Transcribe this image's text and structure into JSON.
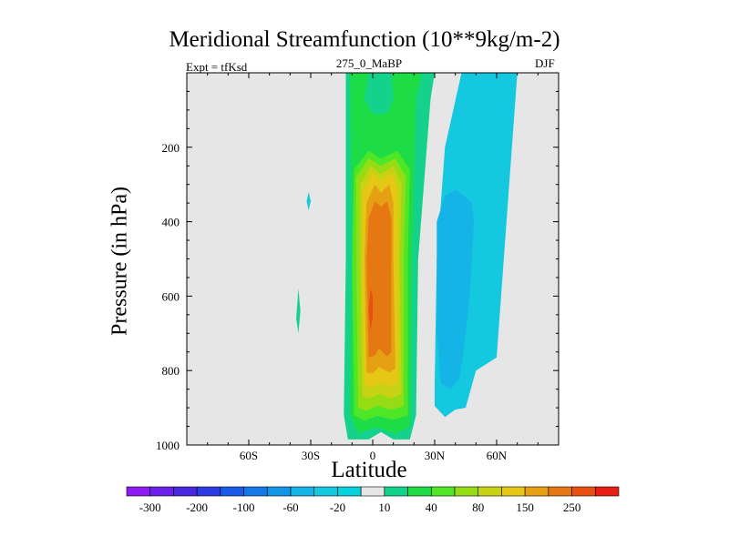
{
  "chart_data": {
    "type": "heatmap",
    "title": "Meridional Streamfunction (10**9kg/m-2)",
    "subtitle_left": "Expt = tfKsd",
    "subtitle_center": "275_0_MaBP",
    "subtitle_right": "DJF",
    "xlabel": "Latitude",
    "ylabel": "Pressure (in hPa)",
    "xlim": [
      -90,
      90
    ],
    "ylim": [
      1000,
      0
    ],
    "x_ticks": [
      {
        "value": -60,
        "label": "60S"
      },
      {
        "value": -30,
        "label": "30S"
      },
      {
        "value": 0,
        "label": "0"
      },
      {
        "value": 30,
        "label": "30N"
      },
      {
        "value": 60,
        "label": "60N"
      }
    ],
    "y_ticks": [
      {
        "value": 200,
        "label": "200"
      },
      {
        "value": 400,
        "label": "400"
      },
      {
        "value": 600,
        "label": "600"
      },
      {
        "value": 800,
        "label": "800"
      },
      {
        "value": 1000,
        "label": "1000"
      }
    ],
    "background_color": "#e6e6e6",
    "colorbar": {
      "levels": [
        -300,
        -250,
        -200,
        -150,
        -100,
        -80,
        -60,
        -40,
        -20,
        -10,
        10,
        20,
        40,
        60,
        80,
        100,
        150,
        200,
        250,
        300
      ],
      "labels": [
        "-300",
        "-200",
        "-100",
        "-60",
        "-20",
        "10",
        "40",
        "80",
        "150",
        "250"
      ],
      "colors": [
        "#8c1cf0",
        "#6a20e6",
        "#4a28e0",
        "#2c3ce0",
        "#1a5ae6",
        "#1478e6",
        "#1496e6",
        "#14b4e6",
        "#14c8e0",
        "#0ad2dc",
        "#e6e6e6",
        "#14d28c",
        "#1edc46",
        "#50e628",
        "#96dc14",
        "#c8d214",
        "#e6c814",
        "#e6a014",
        "#e67814",
        "#e65014",
        "#e61e14"
      ]
    },
    "regions": [
      {
        "level": 10,
        "polygon": [
          [
            -13,
            0
          ],
          [
            -13,
            500
          ],
          [
            -14,
            920
          ],
          [
            -12,
            985
          ],
          [
            -2,
            985
          ],
          [
            4,
            965
          ],
          [
            10,
            985
          ],
          [
            18,
            985
          ],
          [
            21,
            920
          ],
          [
            22,
            500
          ],
          [
            28,
            70
          ],
          [
            30,
            0
          ]
        ]
      },
      {
        "level": 20,
        "polygon": [
          [
            -11,
            0
          ],
          [
            -10,
            500
          ],
          [
            -11,
            920
          ],
          [
            -7,
            968
          ],
          [
            2,
            952
          ],
          [
            11,
            970
          ],
          [
            18,
            950
          ],
          [
            19,
            500
          ],
          [
            21,
            70
          ],
          [
            24,
            0
          ],
          [
            9,
            0
          ],
          [
            10,
            70
          ],
          [
            7,
            110
          ],
          [
            0,
            110
          ],
          [
            -4,
            70
          ],
          [
            -2,
            0
          ]
        ]
      },
      {
        "level": 40,
        "polygon": [
          [
            -9,
            260
          ],
          [
            -10,
            500
          ],
          [
            -9,
            920
          ],
          [
            -4,
            935
          ],
          [
            2,
            922
          ],
          [
            10,
            932
          ],
          [
            17,
            920
          ],
          [
            17,
            500
          ],
          [
            18,
            260
          ],
          [
            12,
            210
          ],
          [
            4,
            230
          ],
          [
            -2,
            210
          ]
        ]
      },
      {
        "level": 60,
        "polygon": [
          [
            -8,
            280
          ],
          [
            -8,
            500
          ],
          [
            -7,
            900
          ],
          [
            -3,
            908
          ],
          [
            2,
            895
          ],
          [
            9,
            905
          ],
          [
            15,
            895
          ],
          [
            15,
            500
          ],
          [
            16,
            280
          ],
          [
            11,
            230
          ],
          [
            4,
            250
          ],
          [
            -2,
            230
          ]
        ]
      },
      {
        "level": 80,
        "polygon": [
          [
            -6,
            300
          ],
          [
            -6,
            500
          ],
          [
            -5,
            870
          ],
          [
            -1,
            875
          ],
          [
            3,
            862
          ],
          [
            9,
            875
          ],
          [
            14,
            862
          ],
          [
            13,
            500
          ],
          [
            14,
            300
          ],
          [
            10,
            250
          ],
          [
            4,
            272
          ],
          [
            -1,
            250
          ]
        ]
      },
      {
        "level": 100,
        "polygon": [
          [
            -5,
            320
          ],
          [
            -5,
            500
          ],
          [
            -4,
            840
          ],
          [
            0,
            845
          ],
          [
            3,
            832
          ],
          [
            9,
            842
          ],
          [
            12,
            832
          ],
          [
            12,
            500
          ],
          [
            12,
            320
          ],
          [
            9,
            270
          ],
          [
            4,
            292
          ],
          [
            0,
            270
          ]
        ]
      },
      {
        "level": 150,
        "polygon": [
          [
            -3,
            350
          ],
          [
            -4,
            500
          ],
          [
            -3,
            805
          ],
          [
            0,
            808
          ],
          [
            3,
            790
          ],
          [
            8,
            805
          ],
          [
            11,
            795
          ],
          [
            10,
            500
          ],
          [
            10,
            350
          ],
          [
            8,
            300
          ],
          [
            4,
            322
          ],
          [
            1,
            300
          ]
        ]
      },
      {
        "level": 200,
        "polygon": [
          [
            -2,
            390
          ],
          [
            -3,
            500
          ],
          [
            -2,
            765
          ],
          [
            1,
            760
          ],
          [
            3,
            740
          ],
          [
            7,
            762
          ],
          [
            9,
            750
          ],
          [
            9,
            500
          ],
          [
            9,
            390
          ],
          [
            7,
            345
          ],
          [
            4,
            360
          ],
          [
            1,
            345
          ]
        ]
      },
      {
        "level": 250,
        "polygon": [
          [
            -1,
            580
          ],
          [
            -2,
            640
          ],
          [
            -1,
            690
          ],
          [
            0,
            660
          ],
          [
            0,
            600
          ]
        ]
      },
      {
        "level": -20,
        "polygon": [
          [
            43,
            0
          ],
          [
            35,
            200
          ],
          [
            31,
            500
          ],
          [
            30,
            835
          ],
          [
            30,
            895
          ],
          [
            35,
            925
          ],
          [
            40,
            905
          ],
          [
            45,
            900
          ],
          [
            50,
            800
          ],
          [
            60,
            765
          ],
          [
            70,
            0
          ]
        ]
      },
      {
        "level": -40,
        "polygon": [
          [
            31,
            400
          ],
          [
            31,
            700
          ],
          [
            33,
            835
          ],
          [
            38,
            850
          ],
          [
            42,
            820
          ],
          [
            44,
            750
          ],
          [
            47,
            600
          ],
          [
            49,
            400
          ],
          [
            48,
            350
          ],
          [
            44,
            330
          ],
          [
            40,
            315
          ],
          [
            35,
            330
          ]
        ]
      },
      {
        "level": 10,
        "polygon": [
          [
            -36,
            580
          ],
          [
            -37,
            660
          ],
          [
            -36,
            700
          ],
          [
            -35,
            640
          ]
        ]
      },
      {
        "level": -20,
        "polygon": [
          [
            -31,
            320
          ],
          [
            -32,
            345
          ],
          [
            -31,
            370
          ],
          [
            -30,
            345
          ]
        ]
      }
    ]
  }
}
